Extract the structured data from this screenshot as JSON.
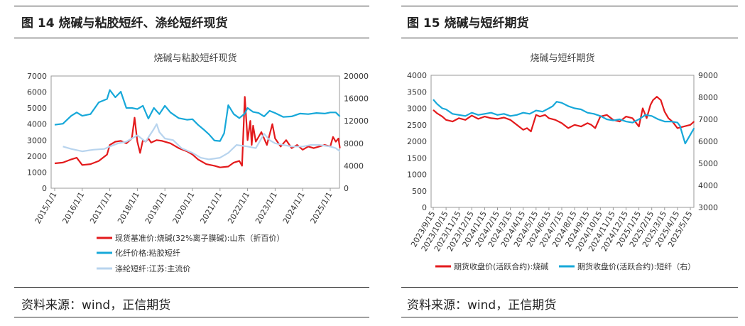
{
  "left": {
    "figure_title": "图 14  烧碱与粘胶短纤、涤纶短纤现货",
    "source": "资料来源：wind，正信期货",
    "chart_data": {
      "type": "line",
      "title": "烧碱与粘胶短纤现货",
      "x_ticks": [
        "2015/1/1",
        "2016/1/1",
        "2017/1/1",
        "2018/1/1",
        "2019/1/1",
        "2020/1/1",
        "2021/1/1",
        "2022/1/1",
        "2023/1/1",
        "2024/1/1",
        "2025/1/1"
      ],
      "y_left": {
        "min": 0,
        "max": 7000,
        "ticks": [
          "0",
          "1000",
          "2000",
          "3000",
          "4000",
          "5000",
          "6000",
          "7000"
        ]
      },
      "y_right": {
        "min": 0,
        "max": 20000,
        "ticks": [
          "0",
          "4000",
          "8000",
          "12000",
          "16000",
          "20000"
        ]
      },
      "series": [
        {
          "name": "现货基准价:烧碱(32%离子膜碱):山东（折百价）",
          "color": "#e31a1c",
          "axis": "left",
          "x": [
            2015.0,
            2015.3,
            2015.6,
            2015.8,
            2016.0,
            2016.3,
            2016.6,
            2016.9,
            2017.0,
            2017.2,
            2017.4,
            2017.6,
            2017.8,
            2017.9,
            2018.0,
            2018.1,
            2018.2,
            2018.3,
            2018.4,
            2018.5,
            2018.7,
            2018.9,
            2019.2,
            2019.5,
            2019.8,
            2020.0,
            2020.2,
            2020.5,
            2020.8,
            2021.0,
            2021.3,
            2021.5,
            2021.7,
            2021.8,
            2021.9,
            2022.0,
            2022.1,
            2022.15,
            2022.2,
            2022.3,
            2022.5,
            2022.7,
            2022.9,
            2023.0,
            2023.2,
            2023.4,
            2023.6,
            2023.8,
            2024.0,
            2024.2,
            2024.4,
            2024.6,
            2024.8,
            2025.0,
            2025.1,
            2025.2,
            2025.3,
            2025.35
          ],
          "values": [
            1550,
            1600,
            1800,
            1900,
            1450,
            1500,
            1700,
            2100,
            2700,
            2900,
            2950,
            2800,
            3100,
            4400,
            2900,
            2200,
            3000,
            2900,
            3100,
            2850,
            3000,
            2950,
            2800,
            2500,
            2300,
            2100,
            1800,
            1500,
            1400,
            1300,
            1350,
            1600,
            1700,
            1400,
            5700,
            3000,
            4200,
            2700,
            3900,
            2900,
            3500,
            2700,
            4000,
            3100,
            2600,
            3000,
            2500,
            2700,
            2400,
            2600,
            2500,
            2600,
            2700,
            2600,
            3200,
            2900,
            3100,
            2500
          ]
        },
        {
          "name": "化纤价格:粘胶短纤",
          "color": "#17a8d9",
          "axis": "right",
          "x": [
            2015.0,
            2015.3,
            2015.6,
            2015.8,
            2016.0,
            2016.3,
            2016.6,
            2016.9,
            2017.0,
            2017.2,
            2017.4,
            2017.6,
            2017.8,
            2018.0,
            2018.2,
            2018.4,
            2018.6,
            2018.8,
            2019.0,
            2019.2,
            2019.5,
            2019.8,
            2020.0,
            2020.2,
            2020.4,
            2020.6,
            2020.8,
            2021.0,
            2021.15,
            2021.3,
            2021.5,
            2021.7,
            2021.9,
            2022.0,
            2022.2,
            2022.4,
            2022.6,
            2022.8,
            2023.0,
            2023.3,
            2023.6,
            2023.9,
            2024.2,
            2024.5,
            2024.8,
            2025.0,
            2025.2,
            2025.35
          ],
          "values": [
            11300,
            11500,
            12900,
            13500,
            12900,
            13200,
            15300,
            15900,
            17500,
            16200,
            17200,
            14300,
            14300,
            14100,
            14700,
            12400,
            14300,
            13200,
            14700,
            13500,
            12500,
            12200,
            12300,
            11300,
            10500,
            9600,
            8500,
            8400,
            9800,
            14800,
            13200,
            12500,
            13300,
            14300,
            13600,
            13400,
            12800,
            13800,
            13400,
            12700,
            12800,
            13300,
            13200,
            13400,
            13300,
            13500,
            13500,
            12800
          ]
        },
        {
          "name": "涤纶短纤:江苏:主流价",
          "color": "#b8d4ee",
          "axis": "left",
          "x": [
            2015.3,
            2015.6,
            2016.0,
            2016.4,
            2016.8,
            2017.0,
            2017.3,
            2017.6,
            2018.0,
            2018.3,
            2018.6,
            2018.7,
            2018.8,
            2019.0,
            2019.3,
            2019.6,
            2020.0,
            2020.3,
            2020.6,
            2021.0,
            2021.3,
            2021.6,
            2022.0,
            2022.3,
            2022.6,
            2022.8,
            2023.0,
            2023.3,
            2023.6,
            2024.0,
            2024.3,
            2024.6,
            2025.0,
            2025.2,
            2025.35
          ],
          "values": [
            2600,
            2450,
            2300,
            2400,
            2450,
            2600,
            2800,
            2900,
            3300,
            2900,
            3700,
            4000,
            3500,
            3100,
            3000,
            2500,
            2200,
            1900,
            1800,
            1900,
            2200,
            2700,
            2600,
            2500,
            3400,
            3000,
            2800,
            2700,
            2600,
            2600,
            2700,
            2700,
            2600,
            2500,
            2300
          ]
        }
      ]
    }
  },
  "right": {
    "figure_title": "图 15    烧碱与短纤期货",
    "source": "资料来源：wind，正信期货",
    "chart_data": {
      "type": "line",
      "title": "烧碱与短纤期货",
      "x_ticks": [
        "2023/9/15",
        "2023/10/15",
        "2023/11/15",
        "2023/12/15",
        "2024/1/15",
        "2024/2/15",
        "2024/3/15",
        "2024/4/15",
        "2024/5/15",
        "2024/6/15",
        "2024/7/15",
        "2024/8/15",
        "2024/9/15",
        "2024/10/15",
        "2024/11/15",
        "2024/12/15",
        "2025/1/15",
        "2025/2/15",
        "2025/3/15",
        "2025/4/15",
        "2025/5/15"
      ],
      "y_left": {
        "min": 0,
        "max": 4000,
        "ticks": [
          "0",
          "500",
          "1000",
          "1500",
          "2000",
          "2500",
          "3000",
          "3500",
          "4000"
        ]
      },
      "y_right": {
        "min": 3000,
        "max": 9000,
        "ticks": [
          "3000",
          "4000",
          "5000",
          "6000",
          "7000",
          "8000",
          "9000"
        ]
      },
      "series": [
        {
          "name": "期货收盘价(活跃合约):烧碱",
          "color": "#e31a1c",
          "axis": "left",
          "x": [
            0,
            0.3,
            0.7,
            1.0,
            1.5,
            2.0,
            2.5,
            3.0,
            3.5,
            4.0,
            4.5,
            5.0,
            5.5,
            6.0,
            6.5,
            7.0,
            7.3,
            7.6,
            8.0,
            8.3,
            8.7,
            9.0,
            9.5,
            10.0,
            10.5,
            11.0,
            11.5,
            12.0,
            12.3,
            12.6,
            13.0,
            13.5,
            14.0,
            14.5,
            15.0,
            15.5,
            16.0,
            16.3,
            16.6,
            16.9,
            17.1,
            17.4,
            17.7,
            18.0,
            18.3,
            18.6,
            19.0,
            19.5,
            20.0,
            20.3
          ],
          "values": [
            2950,
            2850,
            2750,
            2650,
            2600,
            2700,
            2650,
            2780,
            2680,
            2750,
            2700,
            2680,
            2720,
            2650,
            2500,
            2350,
            2400,
            2300,
            2800,
            2750,
            2800,
            2700,
            2650,
            2550,
            2400,
            2500,
            2450,
            2550,
            2500,
            2400,
            2750,
            2800,
            2650,
            2600,
            2750,
            2700,
            2450,
            3000,
            2700,
            3100,
            3250,
            3350,
            3250,
            2900,
            2700,
            2600,
            2400,
            2450,
            2500,
            2600
          ]
        },
        {
          "name": "期货收盘价(活跃合约):短纤（右）",
          "color": "#17a8d9",
          "axis": "right",
          "x": [
            0,
            0.3,
            0.7,
            1.0,
            1.5,
            2.0,
            2.5,
            3.0,
            3.5,
            4.0,
            4.5,
            5.0,
            5.5,
            6.0,
            6.5,
            7.0,
            7.5,
            8.0,
            8.5,
            9.0,
            9.3,
            9.6,
            10.0,
            10.5,
            11.0,
            11.5,
            12.0,
            12.5,
            13.0,
            13.5,
            14.0,
            14.5,
            15.0,
            15.5,
            16.0,
            16.5,
            17.0,
            17.5,
            18.0,
            18.5,
            19.0,
            19.2,
            19.4,
            19.6,
            19.8,
            20.0,
            20.3
          ],
          "values": [
            7900,
            7700,
            7500,
            7450,
            7250,
            7200,
            7150,
            7300,
            7200,
            7250,
            7300,
            7200,
            7250,
            7150,
            7200,
            7300,
            7250,
            7400,
            7350,
            7500,
            7600,
            7800,
            7750,
            7600,
            7500,
            7450,
            7300,
            7250,
            7150,
            7000,
            6950,
            7000,
            6900,
            6850,
            7000,
            7200,
            7150,
            7000,
            6900,
            6900,
            6850,
            6700,
            6300,
            5900,
            6100,
            6300,
            6600
          ]
        }
      ]
    }
  }
}
